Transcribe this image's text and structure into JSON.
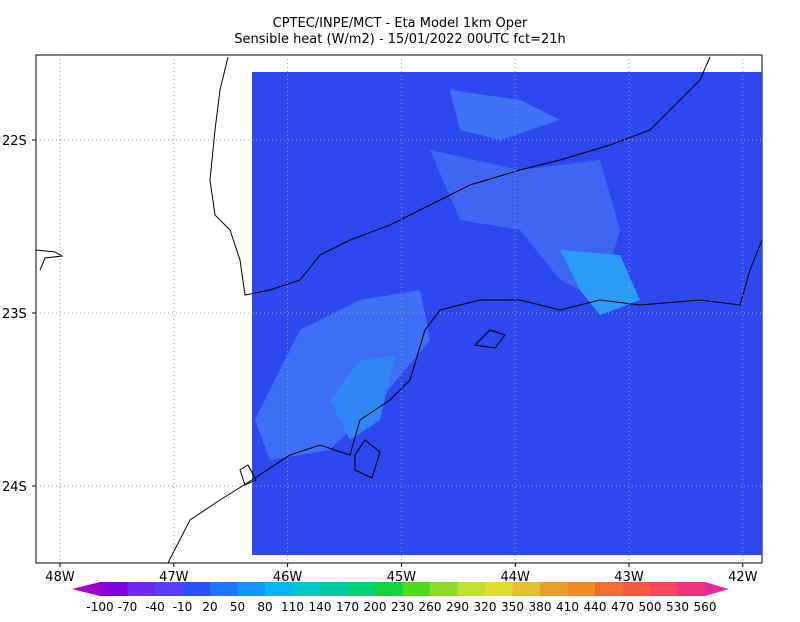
{
  "header": {
    "line1": "CPTEC/INPE/MCT -  Eta Model 1km Oper",
    "line2": "Sensible heat (W/m2) - 15/01/2022 00UTC fct=21h"
  },
  "map": {
    "lon_labels": [
      "48W",
      "47W",
      "46W",
      "45W",
      "44W",
      "43W",
      "42W"
    ],
    "lat_labels": [
      "22S",
      "23S",
      "24S"
    ]
  },
  "colorbar": {
    "labels": [
      -100,
      -70,
      -40,
      -10,
      20,
      50,
      80,
      110,
      140,
      170,
      200,
      230,
      260,
      290,
      320,
      350,
      380,
      410,
      440,
      470,
      500,
      530,
      560
    ],
    "colors": [
      "#a000c8",
      "#8200dc",
      "#6e28f0",
      "#5a3cff",
      "#2850ff",
      "#1e78ff",
      "#1496ff",
      "#0ab4f0",
      "#00c8c8",
      "#00c8a0",
      "#00d278",
      "#14d23c",
      "#50dc1e",
      "#8cdc28",
      "#bee132",
      "#e1dc32",
      "#e6be32",
      "#e6a028",
      "#f08c28",
      "#f06e32",
      "#f55a3c",
      "#f5465a",
      "#f0327d",
      "#e628a0"
    ]
  }
}
